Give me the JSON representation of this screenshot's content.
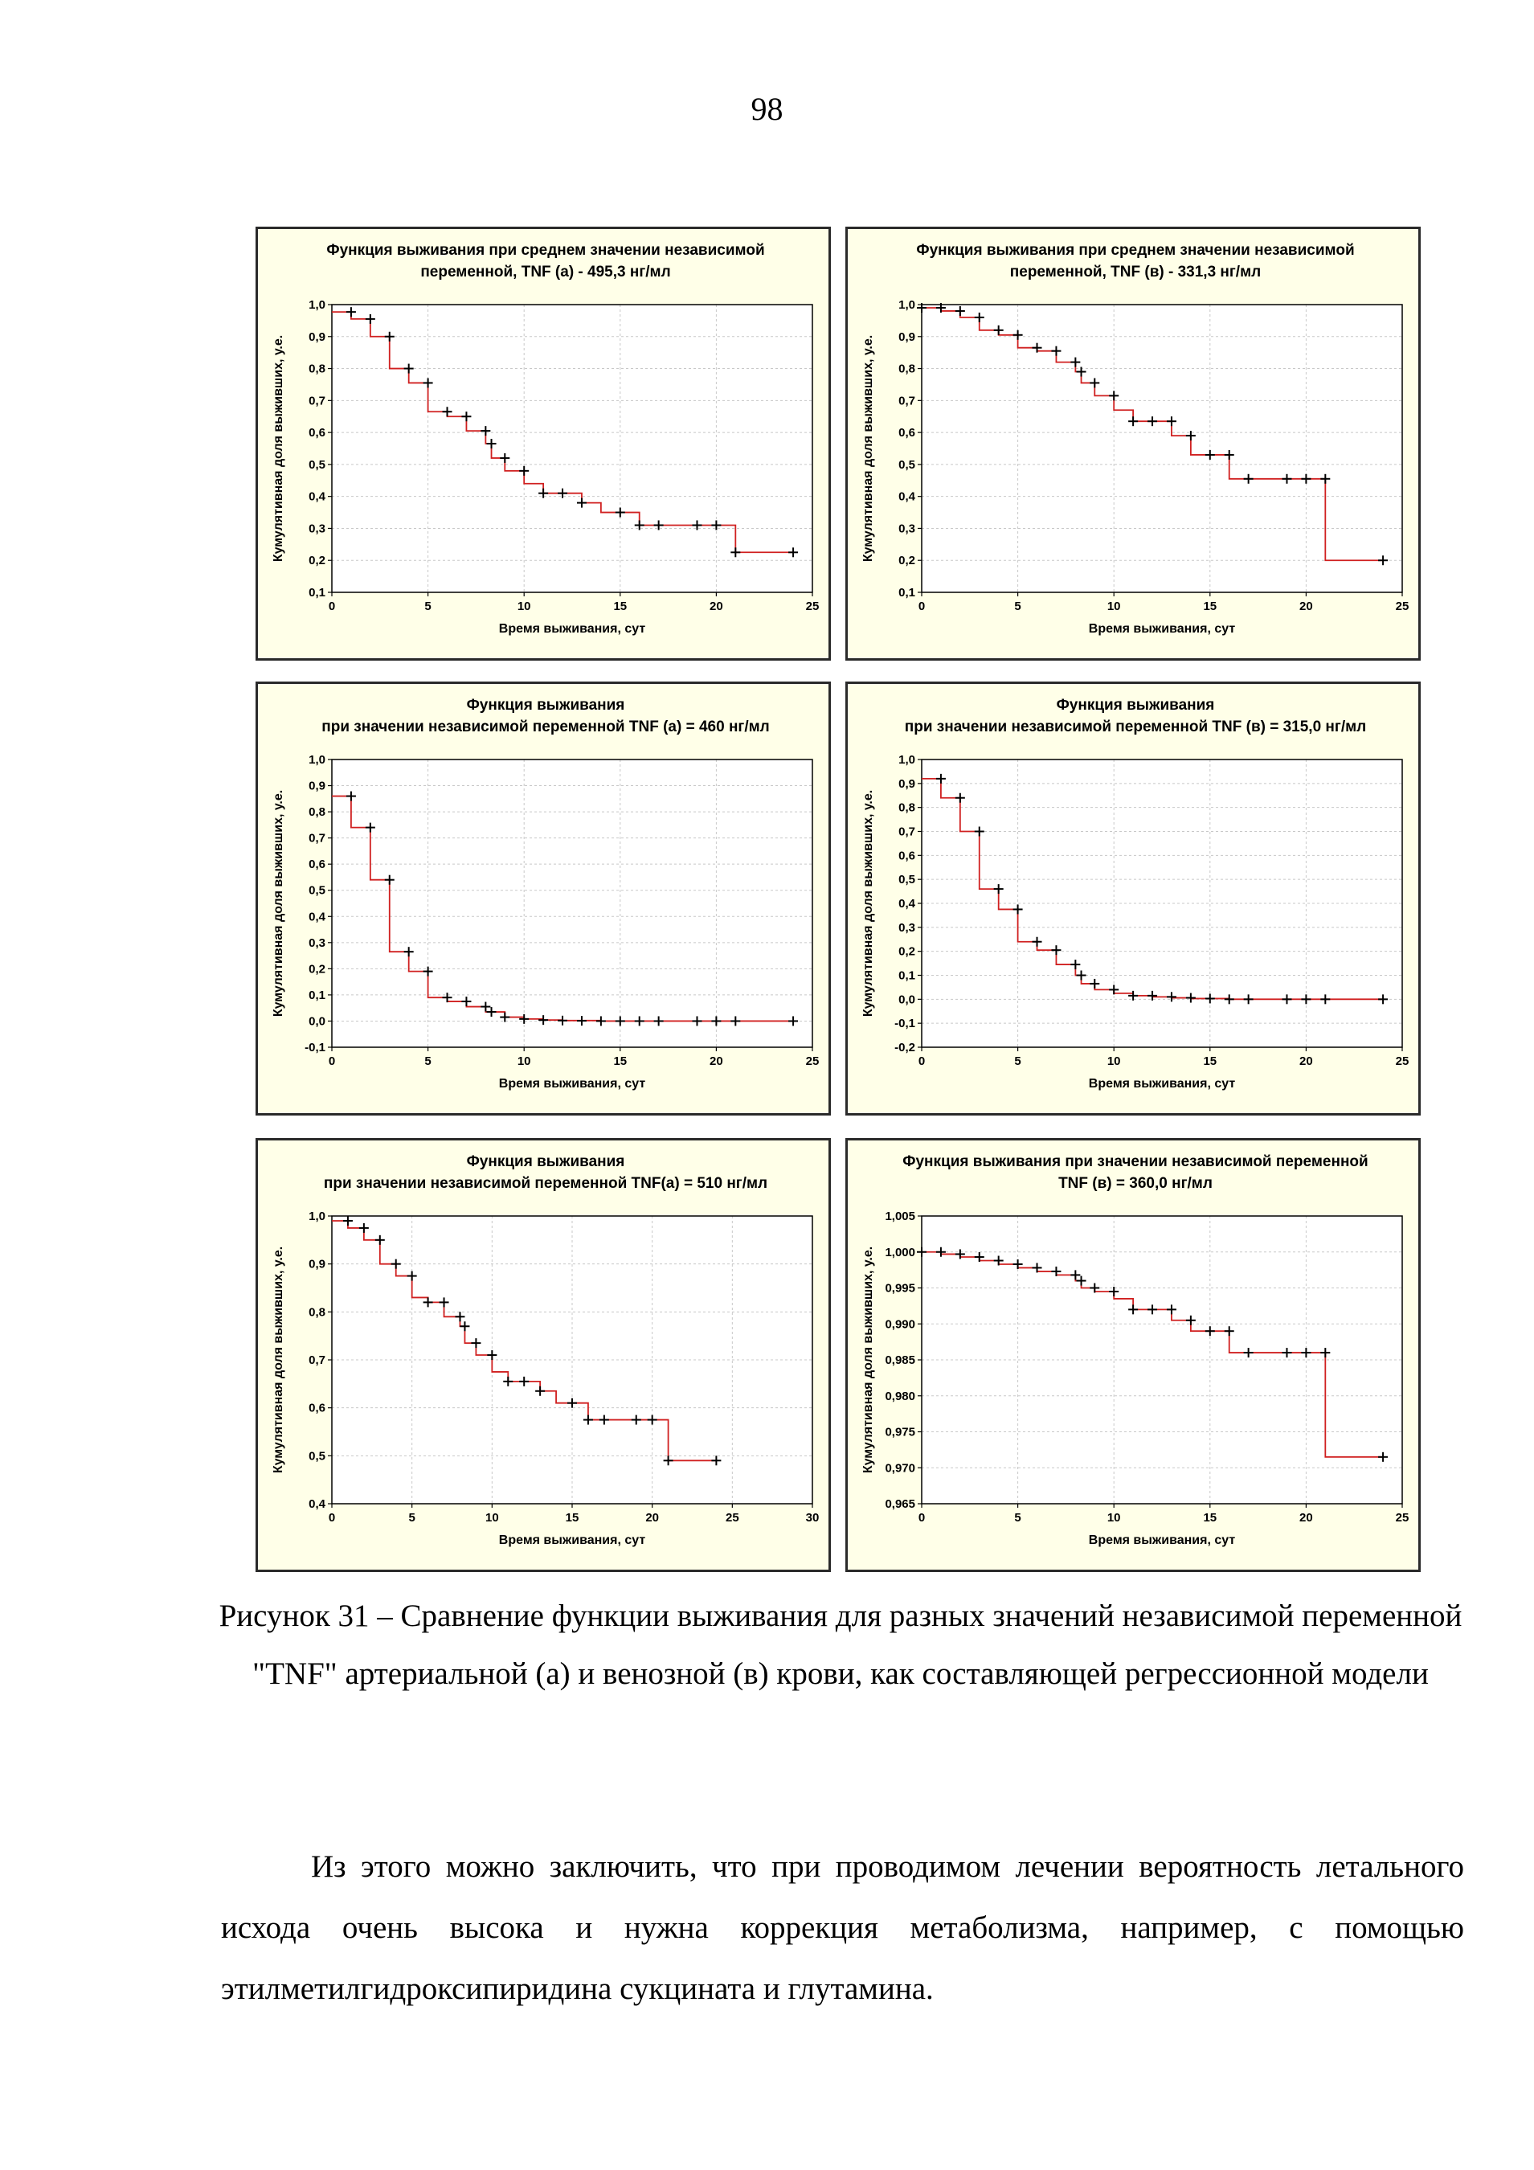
{
  "page_number": "98",
  "caption": "Рисунок 31 – Сравнение функции выживания для разных значений независимой переменной \"TNF\" артериальной (а) и венозной (в) крови, как составляющей регрессионной модели",
  "body_text": "Из этого можно заключить, что при проводимом лечении вероятность летального исхода очень высока и нужна коррекция метаболизма, например, с помощью этилметилгидроксипиридина сукцината и глутамина.",
  "colors": {
    "panel_bg": "#ffffe8",
    "curve": "#d02020",
    "marker": "#000000",
    "grid": "#c8c8c8"
  },
  "chart_data": [
    {
      "type": "line",
      "title_lines": [
        "Функция выживания при среднем значении независимой",
        "переменной, TNF (а) - 495,3 нг/мл"
      ],
      "xlabel": "Время выживания, сут",
      "ylabel": "Кумулятивная доля выживших, у.е.",
      "xlim": [
        0,
        25
      ],
      "ylim": [
        0.1,
        1.0
      ],
      "xticks": [
        0,
        5,
        10,
        15,
        20,
        25
      ],
      "xtick_labels": [
        "0",
        "5",
        "10",
        "15",
        "20",
        "25"
      ],
      "yticks": [
        0.1,
        0.2,
        0.3,
        0.4,
        0.5,
        0.6,
        0.7,
        0.8,
        0.9,
        1.0
      ],
      "ytick_labels": [
        "0,1",
        "0,2",
        "0,3",
        "0,4",
        "0,5",
        "0,6",
        "0,7",
        "0,8",
        "0,9",
        "1,0"
      ],
      "start": 0.977,
      "steps": [
        [
          1,
          0.955
        ],
        [
          2,
          0.9
        ],
        [
          3,
          0.8
        ],
        [
          4,
          0.755
        ],
        [
          5,
          0.665
        ],
        [
          6,
          0.65
        ],
        [
          7,
          0.605
        ],
        [
          8,
          0.565
        ],
        [
          8.3,
          0.52
        ],
        [
          9,
          0.48
        ],
        [
          10,
          0.44
        ],
        [
          11,
          0.41
        ],
        [
          13,
          0.38
        ],
        [
          14,
          0.35
        ],
        [
          16,
          0.31
        ],
        [
          21,
          0.225
        ]
      ],
      "censored": [
        [
          1,
          0.977
        ],
        [
          2,
          0.955
        ],
        [
          3,
          0.9
        ],
        [
          4,
          0.8
        ],
        [
          5,
          0.755
        ],
        [
          6,
          0.665
        ],
        [
          7,
          0.65
        ],
        [
          8,
          0.605
        ],
        [
          8.3,
          0.565
        ],
        [
          9,
          0.52
        ],
        [
          10,
          0.48
        ],
        [
          11,
          0.41
        ],
        [
          12,
          0.41
        ],
        [
          13,
          0.38
        ],
        [
          15,
          0.35
        ],
        [
          16,
          0.31
        ],
        [
          17,
          0.31
        ],
        [
          19,
          0.31
        ],
        [
          20,
          0.31
        ],
        [
          21,
          0.225
        ],
        [
          24,
          0.225
        ]
      ]
    },
    {
      "type": "line",
      "title_lines": [
        "Функция выживания при среднем значении независимой",
        "переменной, TNF (в) - 331,3 нг/мл"
      ],
      "xlabel": "Время выживания, сут",
      "ylabel": "Кумулятивная доля выживших, у.е.",
      "xlim": [
        0,
        25
      ],
      "ylim": [
        0.1,
        1.0
      ],
      "xticks": [
        0,
        5,
        10,
        15,
        20,
        25
      ],
      "xtick_labels": [
        "0",
        "5",
        "10",
        "15",
        "20",
        "25"
      ],
      "yticks": [
        0.1,
        0.2,
        0.3,
        0.4,
        0.5,
        0.6,
        0.7,
        0.8,
        0.9,
        1.0
      ],
      "ytick_labels": [
        "0,1",
        "0,2",
        "0,3",
        "0,4",
        "0,5",
        "0,6",
        "0,7",
        "0,8",
        "0,9",
        "1,0"
      ],
      "start": 0.99,
      "steps": [
        [
          1,
          0.98
        ],
        [
          2,
          0.96
        ],
        [
          3,
          0.92
        ],
        [
          4,
          0.905
        ],
        [
          5,
          0.865
        ],
        [
          6,
          0.855
        ],
        [
          7,
          0.82
        ],
        [
          8,
          0.79
        ],
        [
          8.3,
          0.755
        ],
        [
          9,
          0.715
        ],
        [
          10,
          0.67
        ],
        [
          11,
          0.635
        ],
        [
          13,
          0.59
        ],
        [
          14,
          0.53
        ],
        [
          16,
          0.455
        ],
        [
          21,
          0.2
        ]
      ],
      "censored": [
        [
          0,
          0.99
        ],
        [
          1,
          0.99
        ],
        [
          2,
          0.98
        ],
        [
          3,
          0.96
        ],
        [
          4,
          0.92
        ],
        [
          5,
          0.905
        ],
        [
          6,
          0.865
        ],
        [
          7,
          0.855
        ],
        [
          8,
          0.82
        ],
        [
          8.3,
          0.79
        ],
        [
          9,
          0.755
        ],
        [
          10,
          0.715
        ],
        [
          11,
          0.635
        ],
        [
          12,
          0.635
        ],
        [
          13,
          0.635
        ],
        [
          14,
          0.59
        ],
        [
          15,
          0.53
        ],
        [
          16,
          0.53
        ],
        [
          17,
          0.455
        ],
        [
          19,
          0.455
        ],
        [
          20,
          0.455
        ],
        [
          21,
          0.455
        ],
        [
          24,
          0.2
        ]
      ]
    },
    {
      "type": "line",
      "title_lines": [
        "Функция выживания",
        "при   значении независимой переменной TNF (а) = 460 нг/мл"
      ],
      "xlabel": "Время выживания, сут",
      "ylabel": "Кумулятивная доля выживших, у.е.",
      "xlim": [
        0,
        25
      ],
      "ylim": [
        -0.1,
        1.0
      ],
      "xticks": [
        0,
        5,
        10,
        15,
        20,
        25
      ],
      "xtick_labels": [
        "0",
        "5",
        "10",
        "15",
        "20",
        "25"
      ],
      "yticks": [
        -0.1,
        0.0,
        0.1,
        0.2,
        0.3,
        0.4,
        0.5,
        0.6,
        0.7,
        0.8,
        0.9,
        1.0
      ],
      "ytick_labels": [
        "-0,1",
        "0,0",
        "0,1",
        "0,2",
        "0,3",
        "0,4",
        "0,5",
        "0,6",
        "0,7",
        "0,8",
        "0,9",
        "1,0"
      ],
      "start": 0.86,
      "steps": [
        [
          1,
          0.74
        ],
        [
          2,
          0.54
        ],
        [
          3,
          0.265
        ],
        [
          4,
          0.19
        ],
        [
          5,
          0.09
        ],
        [
          6,
          0.075
        ],
        [
          7,
          0.055
        ],
        [
          8,
          0.035
        ],
        [
          9,
          0.015
        ],
        [
          10,
          0.008
        ],
        [
          11,
          0.004
        ],
        [
          12,
          0.002
        ],
        [
          14,
          0.0
        ]
      ],
      "censored": [
        [
          1,
          0.86
        ],
        [
          2,
          0.74
        ],
        [
          3,
          0.54
        ],
        [
          4,
          0.265
        ],
        [
          5,
          0.19
        ],
        [
          6,
          0.09
        ],
        [
          7,
          0.075
        ],
        [
          8,
          0.055
        ],
        [
          8.3,
          0.035
        ],
        [
          9,
          0.015
        ],
        [
          10,
          0.008
        ],
        [
          11,
          0.004
        ],
        [
          12,
          0.002
        ],
        [
          13,
          0.001
        ],
        [
          14,
          0.0
        ],
        [
          15,
          0.0
        ],
        [
          16,
          0.0
        ],
        [
          17,
          0.0
        ],
        [
          19,
          0.0
        ],
        [
          20,
          0.0
        ],
        [
          21,
          0.0
        ],
        [
          24,
          0.0
        ]
      ]
    },
    {
      "type": "line",
      "title_lines": [
        "Функция выживания",
        "при значении независимой переменной TNF (в) = 315,0 нг/мл"
      ],
      "xlabel": "Время выживания, сут",
      "ylabel": "Кумулятивная доля выживших, у.е.",
      "xlim": [
        0,
        25
      ],
      "ylim": [
        -0.2,
        1.0
      ],
      "xticks": [
        0,
        5,
        10,
        15,
        20,
        25
      ],
      "xtick_labels": [
        "0",
        "5",
        "10",
        "15",
        "20",
        "25"
      ],
      "yticks": [
        -0.2,
        -0.1,
        0.0,
        0.1,
        0.2,
        0.3,
        0.4,
        0.5,
        0.6,
        0.7,
        0.8,
        0.9,
        1.0
      ],
      "ytick_labels": [
        "-0,2",
        "-0,1",
        "0,0",
        "0,1",
        "0,2",
        "0,3",
        "0,4",
        "0,5",
        "0,6",
        "0,7",
        "0,8",
        "0,9",
        "1,0"
      ],
      "start": 0.92,
      "steps": [
        [
          1,
          0.84
        ],
        [
          2,
          0.7
        ],
        [
          3,
          0.46
        ],
        [
          4,
          0.375
        ],
        [
          5,
          0.24
        ],
        [
          6,
          0.205
        ],
        [
          7,
          0.145
        ],
        [
          8,
          0.1
        ],
        [
          8.3,
          0.065
        ],
        [
          9,
          0.04
        ],
        [
          10,
          0.025
        ],
        [
          11,
          0.015
        ],
        [
          12,
          0.01
        ],
        [
          13,
          0.006
        ],
        [
          14,
          0.003
        ],
        [
          16,
          0.0
        ]
      ],
      "censored": [
        [
          1,
          0.92
        ],
        [
          2,
          0.84
        ],
        [
          3,
          0.7
        ],
        [
          4,
          0.46
        ],
        [
          5,
          0.375
        ],
        [
          6,
          0.24
        ],
        [
          7,
          0.205
        ],
        [
          8,
          0.145
        ],
        [
          8.3,
          0.1
        ],
        [
          9,
          0.065
        ],
        [
          10,
          0.04
        ],
        [
          11,
          0.015
        ],
        [
          12,
          0.015
        ],
        [
          13,
          0.01
        ],
        [
          14,
          0.006
        ],
        [
          15,
          0.003
        ],
        [
          16,
          0.0
        ],
        [
          17,
          0.0
        ],
        [
          19,
          0.0
        ],
        [
          20,
          0.0
        ],
        [
          21,
          0.0
        ],
        [
          24,
          0.0
        ]
      ]
    },
    {
      "type": "line",
      "title_lines": [
        "Функция выживания",
        "при   значении независимой переменной TNF(а) = 510 нг/мл"
      ],
      "xlabel": "Время выживания, сут",
      "ylabel": "Кумулятивная доля выживших, у.е.",
      "xlim": [
        0,
        30
      ],
      "ylim": [
        0.4,
        1.0
      ],
      "xticks": [
        0,
        5,
        10,
        15,
        20,
        25,
        30
      ],
      "xtick_labels": [
        "0",
        "5",
        "10",
        "15",
        "20",
        "25",
        "30"
      ],
      "yticks": [
        0.4,
        0.5,
        0.6,
        0.7,
        0.8,
        0.9,
        1.0
      ],
      "ytick_labels": [
        "0,4",
        "0,5",
        "0,6",
        "0,7",
        "0,8",
        "0,9",
        "1,0"
      ],
      "start": 0.99,
      "steps": [
        [
          1,
          0.975
        ],
        [
          2,
          0.95
        ],
        [
          3,
          0.9
        ],
        [
          4,
          0.875
        ],
        [
          5,
          0.83
        ],
        [
          6,
          0.82
        ],
        [
          7,
          0.79
        ],
        [
          8,
          0.77
        ],
        [
          8.3,
          0.735
        ],
        [
          9,
          0.71
        ],
        [
          10,
          0.675
        ],
        [
          11,
          0.655
        ],
        [
          13,
          0.635
        ],
        [
          14,
          0.61
        ],
        [
          16,
          0.575
        ],
        [
          21,
          0.49
        ]
      ],
      "censored": [
        [
          1,
          0.99
        ],
        [
          2,
          0.975
        ],
        [
          3,
          0.95
        ],
        [
          4,
          0.9
        ],
        [
          5,
          0.875
        ],
        [
          6,
          0.82
        ],
        [
          7,
          0.82
        ],
        [
          8,
          0.79
        ],
        [
          8.3,
          0.77
        ],
        [
          9,
          0.735
        ],
        [
          10,
          0.71
        ],
        [
          11,
          0.655
        ],
        [
          12,
          0.655
        ],
        [
          13,
          0.635
        ],
        [
          15,
          0.61
        ],
        [
          16,
          0.575
        ],
        [
          17,
          0.575
        ],
        [
          19,
          0.575
        ],
        [
          20,
          0.575
        ],
        [
          21,
          0.49
        ],
        [
          24,
          0.49
        ]
      ]
    },
    {
      "type": "line",
      "title_lines": [
        "Функция выживания при значении независимой переменной",
        "TNF (в) = 360,0 нг/мл"
      ],
      "xlabel": "Время выживания, сут",
      "ylabel": "Кумулятивная доля выживших, у.е.",
      "xlim": [
        0,
        25
      ],
      "ylim": [
        0.965,
        1.005
      ],
      "xticks": [
        0,
        5,
        10,
        15,
        20,
        25
      ],
      "xtick_labels": [
        "0",
        "5",
        "10",
        "15",
        "20",
        "25"
      ],
      "yticks": [
        0.965,
        0.97,
        0.975,
        0.98,
        0.985,
        0.99,
        0.995,
        1.0,
        1.005
      ],
      "ytick_labels": [
        "0,965",
        "0,970",
        "0,975",
        "0,980",
        "0,985",
        "0,990",
        "0,995",
        "1,000",
        "1,005"
      ],
      "start": 1.0,
      "steps": [
        [
          1,
          0.9997
        ],
        [
          2,
          0.9993
        ],
        [
          3,
          0.9988
        ],
        [
          4,
          0.9983
        ],
        [
          5,
          0.9978
        ],
        [
          6,
          0.9973
        ],
        [
          7,
          0.9968
        ],
        [
          8,
          0.996
        ],
        [
          8.3,
          0.995
        ],
        [
          9,
          0.9945
        ],
        [
          10,
          0.9935
        ],
        [
          11,
          0.992
        ],
        [
          13,
          0.9905
        ],
        [
          14,
          0.989
        ],
        [
          16,
          0.986
        ],
        [
          21,
          0.9715
        ]
      ],
      "censored": [
        [
          0,
          1.0
        ],
        [
          1,
          1.0
        ],
        [
          2,
          0.9997
        ],
        [
          3,
          0.9993
        ],
        [
          4,
          0.9988
        ],
        [
          5,
          0.9983
        ],
        [
          6,
          0.9978
        ],
        [
          7,
          0.9973
        ],
        [
          8,
          0.9968
        ],
        [
          8.3,
          0.996
        ],
        [
          9,
          0.995
        ],
        [
          10,
          0.9945
        ],
        [
          11,
          0.992
        ],
        [
          12,
          0.992
        ],
        [
          13,
          0.992
        ],
        [
          14,
          0.9905
        ],
        [
          15,
          0.989
        ],
        [
          16,
          0.989
        ],
        [
          17,
          0.986
        ],
        [
          19,
          0.986
        ],
        [
          20,
          0.986
        ],
        [
          21,
          0.986
        ],
        [
          24,
          0.9715
        ]
      ]
    }
  ]
}
